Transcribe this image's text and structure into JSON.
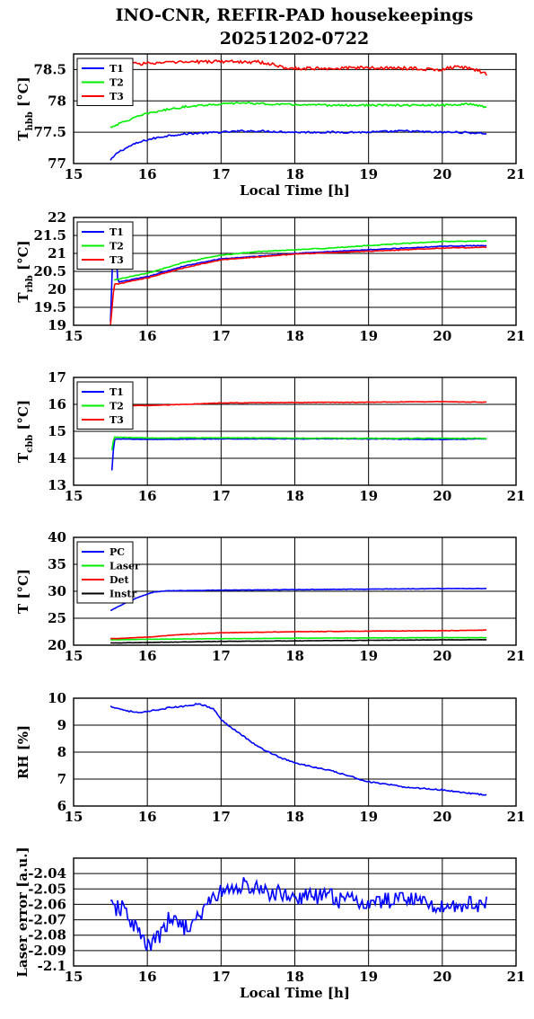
{
  "figure": {
    "title_line1": "INO-CNR, REFIR-PAD housekeepings",
    "title_line2": "20251202-0722"
  },
  "chart_data": [
    {
      "type": "line",
      "ylabel_main": "T",
      "ylabel_sub": "hbb",
      "ylabel_unit": "[°C]",
      "xlabel": "Local Time [h]",
      "xlim": [
        15,
        21
      ],
      "ylim": [
        77,
        78.75
      ],
      "xticks": [
        15,
        16,
        17,
        18,
        19,
        20,
        21
      ],
      "yticks": [
        77,
        77.5,
        78,
        78.5
      ],
      "ytick_labels": [
        "77",
        "77.5",
        "78",
        "78.5"
      ],
      "grid": true,
      "legend_position": "top-left",
      "series": [
        {
          "name": "T1",
          "color": "#0000ff",
          "noise": 0.015,
          "x": [
            15.5,
            15.6,
            15.8,
            16.0,
            16.3,
            16.6,
            17.0,
            17.3,
            17.5,
            18.0,
            18.5,
            19.0,
            19.5,
            19.9,
            20.2,
            20.6
          ],
          "y": [
            77.05,
            77.18,
            77.3,
            77.38,
            77.45,
            77.48,
            77.5,
            77.52,
            77.52,
            77.5,
            77.5,
            77.5,
            77.52,
            77.5,
            77.5,
            77.48
          ]
        },
        {
          "name": "T2",
          "color": "#00ee00",
          "noise": 0.015,
          "x": [
            15.5,
            15.8,
            16.0,
            16.3,
            16.6,
            17.0,
            17.3,
            17.6,
            18.0,
            18.5,
            19.0,
            19.5,
            20.0,
            20.4,
            20.6
          ],
          "y": [
            77.58,
            77.72,
            77.8,
            77.87,
            77.92,
            77.95,
            77.97,
            77.95,
            77.94,
            77.93,
            77.93,
            77.93,
            77.93,
            77.95,
            77.9
          ]
        },
        {
          "name": "T3",
          "color": "#ff0000",
          "noise": 0.025,
          "x": [
            15.5,
            16.0,
            16.5,
            17.0,
            17.5,
            17.7,
            17.9,
            18.5,
            19.0,
            19.5,
            20.0,
            20.2,
            20.5,
            20.6
          ],
          "y": [
            78.58,
            78.6,
            78.62,
            78.63,
            78.62,
            78.58,
            78.52,
            78.52,
            78.53,
            78.52,
            78.5,
            78.55,
            78.48,
            78.42
          ]
        }
      ]
    },
    {
      "type": "line",
      "ylabel_main": "T",
      "ylabel_sub": "rbb",
      "ylabel_unit": "[°C]",
      "xlabel": "",
      "xlim": [
        15,
        21
      ],
      "ylim": [
        19,
        22
      ],
      "xticks": [
        15,
        16,
        17,
        18,
        19,
        20,
        21
      ],
      "yticks": [
        19,
        19.5,
        20,
        20.5,
        21,
        21.5,
        22
      ],
      "ytick_labels": [
        "19",
        "19.5",
        "20",
        "20.5",
        "21",
        "21.5",
        "22"
      ],
      "grid": true,
      "legend_position": "top-left",
      "series": [
        {
          "name": "T1",
          "color": "#0000ff",
          "noise": 0.01,
          "x": [
            15.5,
            15.55,
            15.6,
            16.0,
            16.5,
            17.0,
            17.5,
            18.0,
            18.5,
            19.0,
            19.5,
            20.0,
            20.6
          ],
          "y": [
            19.1,
            22.1,
            20.2,
            20.35,
            20.65,
            20.85,
            20.92,
            21.0,
            21.05,
            21.1,
            21.15,
            21.2,
            21.22
          ]
        },
        {
          "name": "T2",
          "color": "#00ee00",
          "noise": 0.01,
          "x": [
            15.55,
            15.6,
            16.0,
            16.5,
            17.0,
            17.5,
            18.0,
            18.5,
            19.0,
            19.5,
            20.0,
            20.6
          ],
          "y": [
            20.25,
            20.28,
            20.45,
            20.75,
            20.95,
            21.05,
            21.1,
            21.15,
            21.22,
            21.28,
            21.33,
            21.35
          ]
        },
        {
          "name": "T3",
          "color": "#ff0000",
          "noise": 0.01,
          "x": [
            15.5,
            15.55,
            15.6,
            16.0,
            16.5,
            17.0,
            17.5,
            18.0,
            18.5,
            19.0,
            19.5,
            20.0,
            20.6
          ],
          "y": [
            19.0,
            20.15,
            20.15,
            20.32,
            20.6,
            20.82,
            20.9,
            20.98,
            21.02,
            21.06,
            21.1,
            21.15,
            21.17
          ]
        }
      ]
    },
    {
      "type": "line",
      "ylabel_main": "T",
      "ylabel_sub": "cbb",
      "ylabel_unit": "[°C]",
      "xlabel": "",
      "xlim": [
        15,
        21
      ],
      "ylim": [
        13,
        17
      ],
      "xticks": [
        15,
        16,
        17,
        18,
        19,
        20,
        21
      ],
      "yticks": [
        13,
        14,
        15,
        16,
        17
      ],
      "ytick_labels": [
        "13",
        "14",
        "15",
        "16",
        "17"
      ],
      "grid": true,
      "legend_position": "top-left",
      "series": [
        {
          "name": "T1",
          "color": "#0000ff",
          "noise": 0.01,
          "x": [
            15.52,
            15.55,
            15.6,
            16.0,
            17.0,
            18.0,
            19.0,
            20.0,
            20.6
          ],
          "y": [
            13.55,
            14.7,
            14.72,
            14.7,
            14.72,
            14.72,
            14.72,
            14.7,
            14.72
          ]
        },
        {
          "name": "T2",
          "color": "#00ee00",
          "noise": 0.012,
          "x": [
            15.52,
            15.55,
            15.6,
            16.0,
            17.0,
            18.0,
            19.0,
            20.0,
            20.6
          ],
          "y": [
            14.3,
            14.8,
            14.78,
            14.75,
            14.76,
            14.75,
            14.74,
            14.74,
            14.74
          ]
        },
        {
          "name": "T3",
          "color": "#ff0000",
          "noise": 0.01,
          "x": [
            15.55,
            16.0,
            16.5,
            17.0,
            18.0,
            19.0,
            20.0,
            20.6
          ],
          "y": [
            15.95,
            15.96,
            16.0,
            16.05,
            16.07,
            16.08,
            16.1,
            16.08
          ]
        }
      ]
    },
    {
      "type": "line",
      "ylabel_main": "T [°C]",
      "ylabel_sub": "",
      "ylabel_unit": "",
      "xlabel": "",
      "xlim": [
        15,
        21
      ],
      "ylim": [
        20,
        40
      ],
      "xticks": [
        15,
        16,
        17,
        18,
        19,
        20,
        21
      ],
      "yticks": [
        20,
        25,
        30,
        35,
        40
      ],
      "ytick_labels": [
        "20",
        "25",
        "30",
        "35",
        "40"
      ],
      "grid": true,
      "legend_position": "top-left",
      "series": [
        {
          "name": "PC",
          "color": "#0000ff",
          "noise": 0.04,
          "x": [
            15.5,
            15.7,
            15.9,
            16.1,
            16.3,
            17.0,
            18.0,
            19.0,
            20.0,
            20.6
          ],
          "y": [
            26.4,
            27.8,
            29.0,
            29.9,
            30.1,
            30.2,
            30.3,
            30.4,
            30.5,
            30.5
          ]
        },
        {
          "name": "Laser",
          "color": "#00ee00",
          "noise": 0.03,
          "x": [
            15.5,
            16.0,
            17.0,
            18.0,
            19.0,
            20.0,
            20.6
          ],
          "y": [
            21.0,
            21.1,
            21.2,
            21.3,
            21.35,
            21.4,
            21.4
          ]
        },
        {
          "name": "Det",
          "color": "#ff0000",
          "noise": 0.04,
          "x": [
            15.5,
            16.0,
            16.5,
            17.0,
            18.0,
            19.0,
            20.0,
            20.6
          ],
          "y": [
            21.2,
            21.5,
            22.0,
            22.3,
            22.5,
            22.6,
            22.7,
            22.8
          ]
        },
        {
          "name": "Instr",
          "color": "#000000",
          "noise": 0.03,
          "x": [
            15.5,
            16.0,
            17.0,
            18.0,
            19.0,
            20.0,
            20.6
          ],
          "y": [
            20.4,
            20.5,
            20.7,
            20.8,
            20.9,
            21.0,
            21.0
          ]
        }
      ]
    },
    {
      "type": "line",
      "ylabel_main": "RH [%]",
      "ylabel_sub": "",
      "ylabel_unit": "",
      "xlabel": "",
      "xlim": [
        15,
        21
      ],
      "ylim": [
        6,
        10
      ],
      "xticks": [
        15,
        16,
        17,
        18,
        19,
        20,
        21
      ],
      "yticks": [
        6,
        7,
        8,
        9,
        10
      ],
      "ytick_labels": [
        "6",
        "7",
        "8",
        "9",
        "10"
      ],
      "grid": true,
      "legend_position": "",
      "series": [
        {
          "name": "",
          "color": "#0000ff",
          "noise": 0.025,
          "x": [
            15.5,
            15.7,
            15.9,
            16.1,
            16.3,
            16.5,
            16.7,
            16.9,
            17.0,
            17.2,
            17.5,
            17.8,
            18.0,
            18.5,
            19.0,
            19.5,
            20.0,
            20.3,
            20.6
          ],
          "y": [
            9.7,
            9.55,
            9.45,
            9.55,
            9.65,
            9.7,
            9.8,
            9.6,
            9.2,
            8.8,
            8.2,
            7.8,
            7.6,
            7.3,
            6.9,
            6.7,
            6.6,
            6.5,
            6.4
          ]
        }
      ]
    },
    {
      "type": "line",
      "ylabel_main": "Laser error [a.u.]",
      "ylabel_sub": "",
      "ylabel_unit": "",
      "xlabel": "Local Time [h]",
      "xlim": [
        15,
        21
      ],
      "ylim": [
        -2.1,
        -2.03
      ],
      "xticks": [
        15,
        16,
        17,
        18,
        19,
        20,
        21
      ],
      "yticks": [
        -2.1,
        -2.09,
        -2.08,
        -2.07,
        -2.06,
        -2.05,
        -2.04
      ],
      "ytick_labels": [
        "-2.1",
        "-2.09",
        "-2.08",
        "-2.07",
        "-2.06",
        "-2.05",
        "-2.04"
      ],
      "grid": true,
      "legend_position": "",
      "step": 0.0025,
      "series": [
        {
          "name": "",
          "color": "#0000ff",
          "noise": 0.0055,
          "x": [
            15.5,
            15.7,
            15.85,
            16.0,
            16.1,
            16.3,
            16.6,
            16.8,
            17.0,
            17.3,
            17.6,
            18.0,
            18.5,
            19.0,
            19.5,
            20.0,
            20.3,
            20.6
          ],
          "y": [
            -2.062,
            -2.064,
            -2.075,
            -2.088,
            -2.085,
            -2.07,
            -2.075,
            -2.06,
            -2.052,
            -2.048,
            -2.052,
            -2.055,
            -2.055,
            -2.06,
            -2.055,
            -2.062,
            -2.06,
            -2.06
          ]
        }
      ]
    }
  ]
}
